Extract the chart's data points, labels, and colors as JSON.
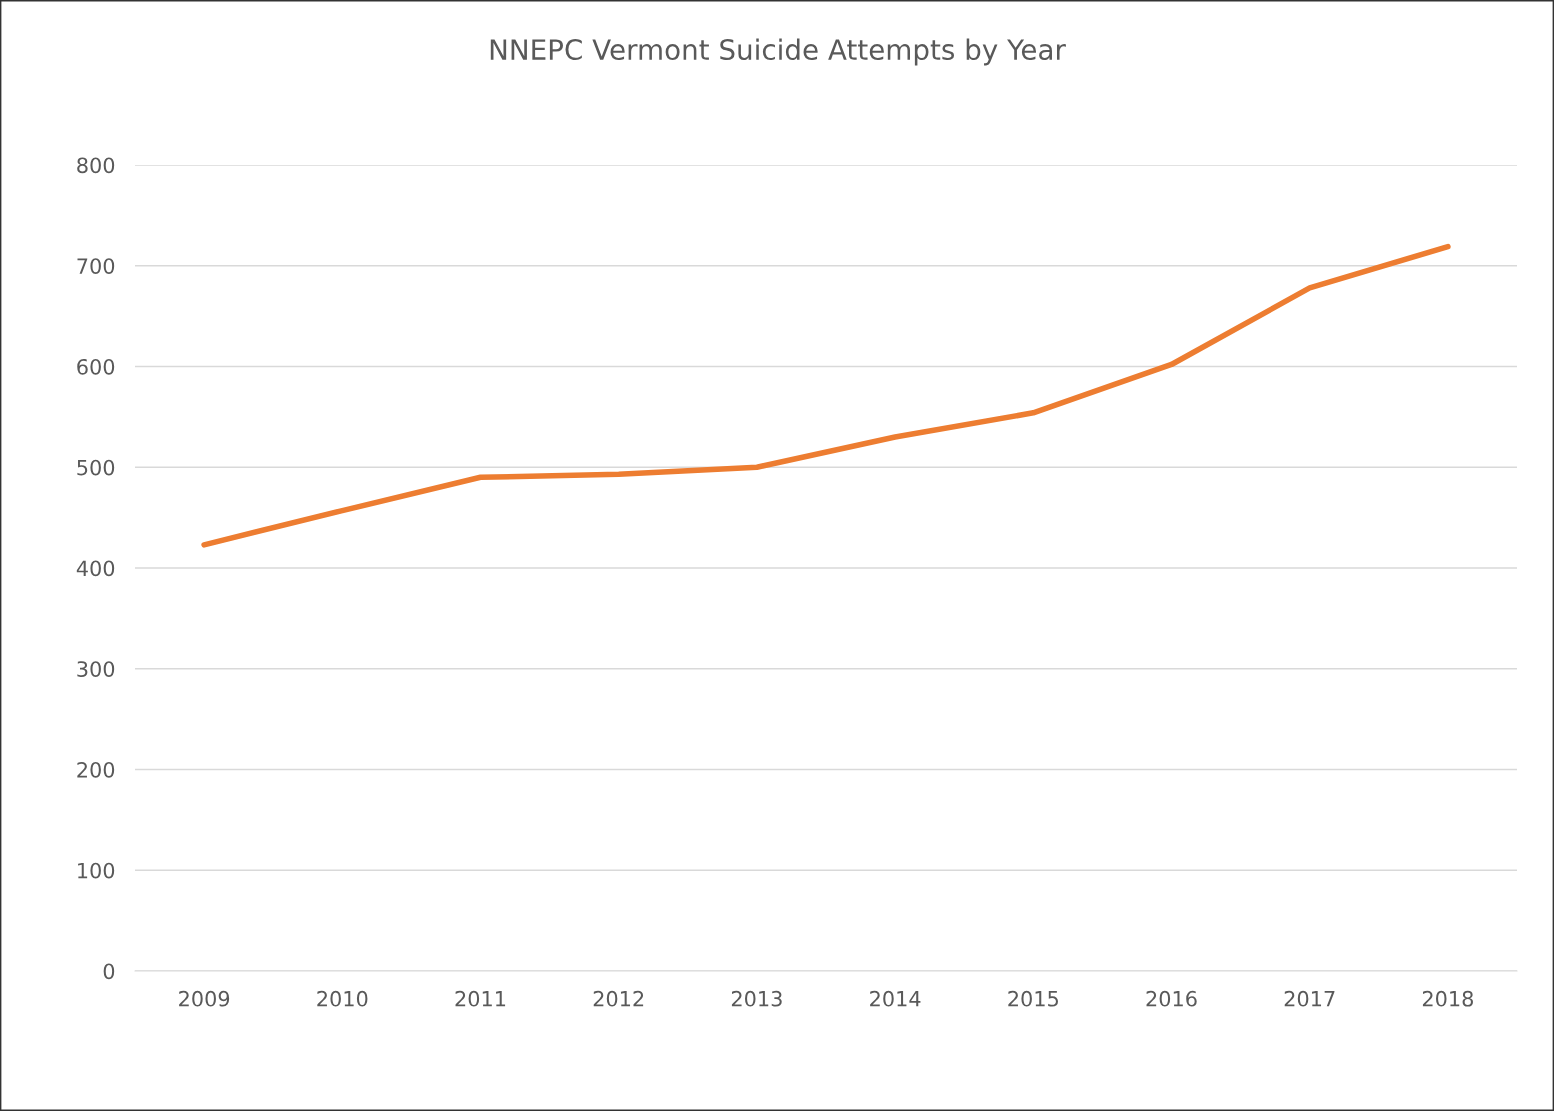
{
  "chart_data": {
    "type": "line",
    "title": "NNEPC Vermont Suicide Attempts by Year",
    "categories": [
      "2009",
      "2010",
      "2011",
      "2012",
      "2013",
      "2014",
      "2015",
      "2016",
      "2017",
      "2018"
    ],
    "series": [
      {
        "color": "#ed7d31",
        "values": [
          423,
          457,
          490,
          493,
          500,
          530,
          554,
          602,
          678,
          719
        ]
      }
    ],
    "ylim": [
      0,
      800
    ],
    "yticks": [
      0,
      100,
      200,
      300,
      400,
      500,
      600,
      700,
      800
    ],
    "grid": "y",
    "marker": "none",
    "line_style": "solid"
  }
}
